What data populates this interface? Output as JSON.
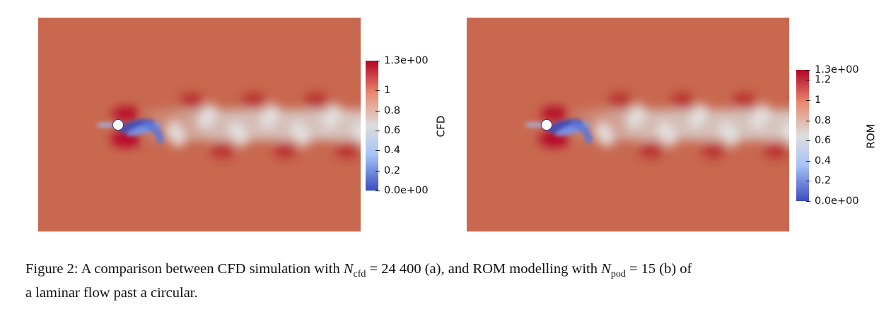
{
  "panels": [
    {
      "id": "a",
      "colorbar": {
        "title": "CFD",
        "ticks": [
          {
            "value": 1.3,
            "label": "1.3e+00"
          },
          {
            "value": 1.0,
            "label": "1"
          },
          {
            "value": 0.8,
            "label": "0.8"
          },
          {
            "value": 0.6,
            "label": "0.6"
          },
          {
            "value": 0.4,
            "label": "0.4"
          },
          {
            "value": 0.2,
            "label": "0.2"
          },
          {
            "value": 0.0,
            "label": "0.0e+00"
          }
        ],
        "range": [
          0,
          1.3
        ]
      }
    },
    {
      "id": "b",
      "colorbar": {
        "title": "ROM",
        "ticks": [
          {
            "value": 1.3,
            "label": "1.3e+00"
          },
          {
            "value": 1.2,
            "label": "1.2"
          },
          {
            "value": 1.0,
            "label": "1"
          },
          {
            "value": 0.8,
            "label": "0.8"
          },
          {
            "value": 0.6,
            "label": "0.6"
          },
          {
            "value": 0.4,
            "label": "0.4"
          },
          {
            "value": 0.2,
            "label": "0.2"
          },
          {
            "value": 0.0,
            "label": "0.0e+00"
          }
        ],
        "range": [
          0,
          1.3
        ]
      }
    }
  ],
  "colors": {
    "background_field": "#c8684f",
    "high": "#b40426",
    "mid": "#dddddd",
    "low": "#3b4cc0",
    "cylinder": "#ffffff"
  },
  "caption": {
    "prefix": "Figure 2: A comparison between CFD simulation with ",
    "n_cfd_symbol": "N",
    "n_cfd_sub": "cfd",
    "n_cfd_value": " = 24 400 (a), and ROM modelling with ",
    "n_pod_symbol": "N",
    "n_pod_sub": "pod",
    "n_pod_value": " = 15 (b) of",
    "line2": "a laminar flow past a circular."
  }
}
